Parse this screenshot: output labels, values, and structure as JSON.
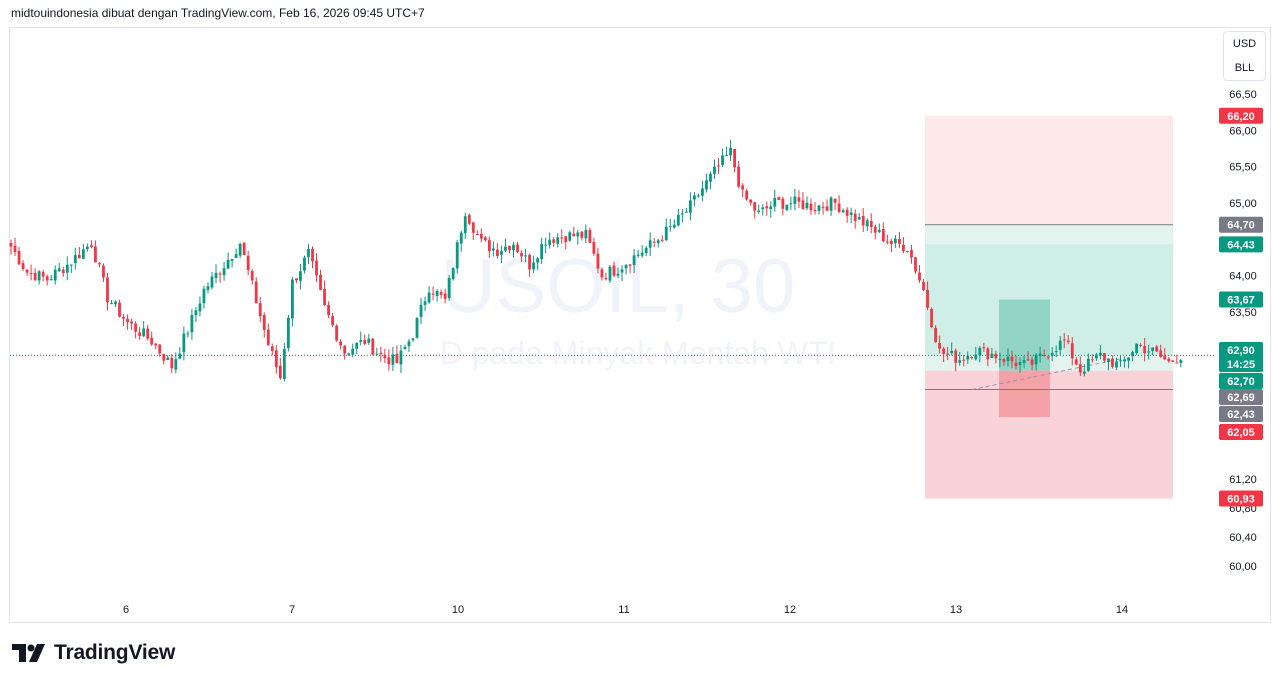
{
  "header": {
    "attribution": "midtouindonesia dibuat dengan TradingView.com, Feb 16, 2026 09:45 UTC+7"
  },
  "currency_box": {
    "currency": "USD",
    "unit": "BLL"
  },
  "watermark": {
    "symbol": "USOIL, 30",
    "description": "D pada Minyak Mentah WTI"
  },
  "brand": {
    "name": "TradingView"
  },
  "colors": {
    "up": "#089981",
    "down": "#f23645",
    "loss_zone": "#f7c8cc",
    "profit_zone": "#c8ebe2",
    "gray_tag": "#787b86",
    "grid_text": "#131722"
  },
  "chart_data": {
    "type": "candlestick",
    "title": "USOIL, 30",
    "xlabel": "",
    "ylabel": "",
    "ylim": [
      59.86,
      66.65
    ],
    "x_ticks": [
      "6",
      "7",
      "10",
      "11",
      "12",
      "13",
      "14"
    ],
    "y_ticks": [
      "66,50",
      "66,00",
      "65,50",
      "65,00",
      "64,00",
      "63,50",
      "63,00",
      "61,20",
      "60,80",
      "60,40",
      "60,00"
    ],
    "y_tick_values": [
      66.5,
      66.0,
      65.5,
      65.0,
      64.0,
      63.5,
      63.0,
      61.2,
      60.8,
      60.4,
      60.0
    ],
    "price_tags": [
      {
        "label": "66,20",
        "value": 66.2,
        "color": "#f23645"
      },
      {
        "label": "64,70",
        "value": 64.7,
        "color": "#787b86"
      },
      {
        "label": "64,43",
        "value": 64.43,
        "color": "#089981"
      },
      {
        "label": "63,67",
        "value": 63.67,
        "color": "#089981"
      },
      {
        "label": "62,90",
        "value": 62.9,
        "color": "#089981"
      },
      {
        "label": "14:25",
        "value": 62.74,
        "color": "#089981"
      },
      {
        "label": "62,70",
        "value": 62.7,
        "color": "#089981"
      },
      {
        "label": "62,69",
        "value": 62.69,
        "color": "#787b86"
      },
      {
        "label": "62,43",
        "value": 62.43,
        "color": "#787b86"
      },
      {
        "label": "62,05",
        "value": 62.05,
        "color": "#f23645"
      },
      {
        "label": "60,93",
        "value": 60.93,
        "color": "#f23645"
      }
    ],
    "last_price": 62.9,
    "close_anchors": [
      [
        0,
        64.4
      ],
      [
        4,
        64.05
      ],
      [
        9,
        63.95
      ],
      [
        14,
        64.15
      ],
      [
        20,
        64.45
      ],
      [
        24,
        63.7
      ],
      [
        29,
        63.35
      ],
      [
        35,
        63.1
      ],
      [
        40,
        62.75
      ],
      [
        44,
        63.25
      ],
      [
        48,
        63.8
      ],
      [
        53,
        64.15
      ],
      [
        57,
        64.45
      ],
      [
        61,
        63.65
      ],
      [
        64,
        63.05
      ],
      [
        67,
        62.6
      ],
      [
        70,
        63.9
      ],
      [
        74,
        64.3
      ],
      [
        78,
        63.55
      ],
      [
        83,
        62.95
      ],
      [
        88,
        63.1
      ],
      [
        92,
        62.9
      ],
      [
        96,
        62.8
      ],
      [
        100,
        63.2
      ],
      [
        104,
        63.85
      ],
      [
        108,
        63.65
      ],
      [
        111,
        64.4
      ],
      [
        113,
        64.9
      ],
      [
        117,
        64.45
      ],
      [
        121,
        64.35
      ],
      [
        125,
        64.45
      ],
      [
        129,
        64.15
      ],
      [
        133,
        64.5
      ],
      [
        138,
        64.55
      ],
      [
        143,
        64.55
      ],
      [
        147,
        64.0
      ],
      [
        151,
        64.1
      ],
      [
        156,
        64.3
      ],
      [
        160,
        64.45
      ],
      [
        165,
        64.7
      ],
      [
        169,
        64.95
      ],
      [
        172,
        65.2
      ],
      [
        176,
        65.5
      ],
      [
        179,
        65.7
      ],
      [
        182,
        65.1
      ],
      [
        186,
        64.85
      ],
      [
        190,
        65.0
      ],
      [
        195,
        65.0
      ],
      [
        200,
        64.95
      ],
      [
        205,
        65.0
      ],
      [
        210,
        64.8
      ],
      [
        214,
        64.65
      ],
      [
        219,
        64.45
      ],
      [
        223,
        64.4
      ],
      [
        227,
        63.8
      ],
      [
        231,
        62.95
      ],
      [
        236,
        62.85
      ],
      [
        240,
        62.98
      ],
      [
        245,
        62.9
      ],
      [
        249,
        62.82
      ],
      [
        253,
        62.75
      ],
      [
        258,
        62.95
      ],
      [
        262,
        63.1
      ],
      [
        266,
        62.7
      ],
      [
        271,
        62.9
      ],
      [
        276,
        62.75
      ],
      [
        280,
        63.05
      ],
      [
        284,
        62.95
      ],
      [
        288,
        62.8
      ],
      [
        291,
        62.9
      ]
    ],
    "range_days": [
      {
        "label": "6",
        "start_index": 0
      },
      {
        "label": "7",
        "start_index": 40
      },
      {
        "label": "10",
        "start_index": 81
      },
      {
        "label": "11",
        "start_index": 122
      },
      {
        "label": "12",
        "start_index": 163
      },
      {
        "label": "13",
        "start_index": 204
      },
      {
        "label": "14",
        "start_index": 245
      }
    ],
    "position": {
      "type": "long",
      "stop_loss_zone": [
        60.93,
        62.69
      ],
      "profit_zone": [
        62.69,
        64.7
      ],
      "entry": 62.69,
      "target": 64.7
    },
    "position_inner": {
      "type": "long",
      "stop_loss_zone": [
        62.05,
        62.69
      ],
      "profit_zone": [
        62.69,
        63.67
      ],
      "entry": 62.69,
      "target": 63.67
    },
    "outer_target": 66.2
  }
}
